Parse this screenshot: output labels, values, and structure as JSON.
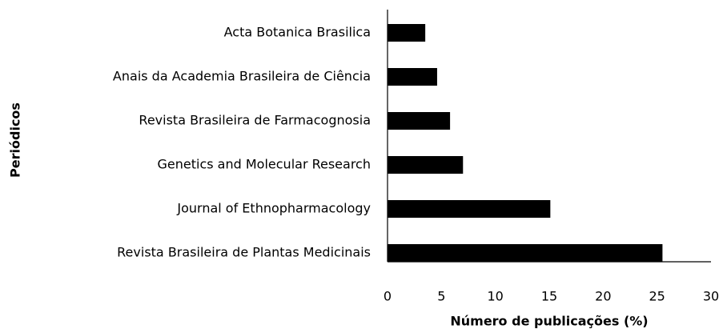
{
  "chart_data": {
    "type": "bar",
    "orientation": "horizontal",
    "categories": [
      "Acta Botanica Brasilica",
      "Anais da Academia Brasileira de Ciência",
      "Revista Brasileira de Farmacognosia",
      "Genetics and Molecular Research",
      "Journal of Ethnopharmacology",
      "Revista Brasileira de Plantas Medicinais"
    ],
    "values": [
      3.5,
      4.6,
      5.8,
      7.0,
      15.1,
      25.5
    ],
    "color": "#000000",
    "xlabel": "Número de publicações (%)",
    "ylabel": "Periódicos",
    "xlim": [
      0,
      30
    ],
    "xticks": [
      0,
      5,
      10,
      15,
      20,
      25,
      30
    ],
    "grid": false
  }
}
